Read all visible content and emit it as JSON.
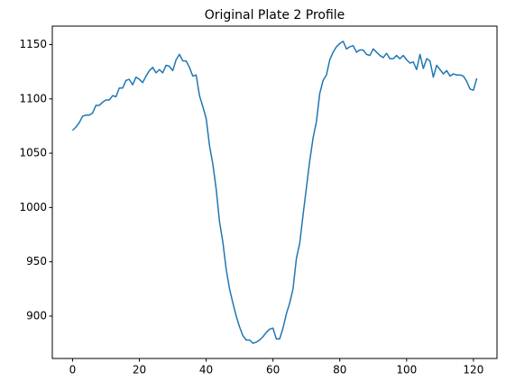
{
  "chart_data": {
    "type": "line",
    "title": "Original Plate 2 Profile",
    "color": "#1f77b4",
    "x": [
      0,
      1,
      2,
      3,
      4,
      5,
      6,
      7,
      8,
      9,
      10,
      11,
      12,
      13,
      14,
      15,
      16,
      17,
      18,
      19,
      20,
      21,
      22,
      23,
      24,
      25,
      26,
      27,
      28,
      29,
      30,
      31,
      32,
      33,
      34,
      35,
      36,
      37,
      38,
      39,
      40,
      41,
      42,
      43,
      44,
      45,
      46,
      47,
      48,
      49,
      50,
      51,
      52,
      53,
      54,
      55,
      56,
      57,
      58,
      59,
      60,
      61,
      62,
      63,
      64,
      65,
      66,
      67,
      68,
      69,
      70,
      71,
      72,
      73,
      74,
      75,
      76,
      77,
      78,
      79,
      80,
      81,
      82,
      83,
      84,
      85,
      86,
      87,
      88,
      89,
      90,
      91,
      92,
      93,
      94,
      95,
      96,
      97,
      98,
      99,
      100,
      101,
      102,
      103,
      104,
      105,
      106,
      107,
      108,
      109,
      110,
      111,
      112,
      113,
      114,
      115,
      116,
      117,
      118,
      119,
      120,
      121
    ],
    "values": [
      1071,
      1074,
      1078,
      1084,
      1085,
      1085,
      1087,
      1094,
      1094,
      1097,
      1099,
      1099,
      1103,
      1102,
      1110,
      1110,
      1117,
      1118,
      1113,
      1120,
      1118,
      1115,
      1121,
      1126,
      1129,
      1124,
      1127,
      1124,
      1131,
      1130,
      1126,
      1136,
      1141,
      1135,
      1135,
      1129,
      1121,
      1122,
      1103,
      1093,
      1082,
      1057,
      1040,
      1017,
      987,
      968,
      943,
      925,
      912,
      900,
      890,
      882,
      878,
      878,
      875,
      876,
      878,
      881,
      885,
      888,
      889,
      879,
      879,
      889,
      902,
      912,
      925,
      953,
      967,
      993,
      1018,
      1043,
      1064,
      1079,
      1105,
      1117,
      1122,
      1136,
      1143,
      1148,
      1151,
      1153,
      1146,
      1148,
      1149,
      1143,
      1145,
      1145,
      1141,
      1140,
      1146,
      1143,
      1140,
      1138,
      1142,
      1137,
      1137,
      1140,
      1137,
      1140,
      1136,
      1133,
      1134,
      1127,
      1141,
      1128,
      1137,
      1135,
      1120,
      1131,
      1127,
      1123,
      1126,
      1121,
      1123,
      1122,
      1122,
      1121,
      1116,
      1109,
      1108,
      1119
    ],
    "xlim": [
      -6.05,
      127.05
    ],
    "ylim": [
      861,
      1167
    ],
    "xticks": [
      0,
      20,
      40,
      60,
      80,
      100,
      120
    ],
    "yticks": [
      900,
      950,
      1000,
      1050,
      1100,
      1150
    ]
  }
}
